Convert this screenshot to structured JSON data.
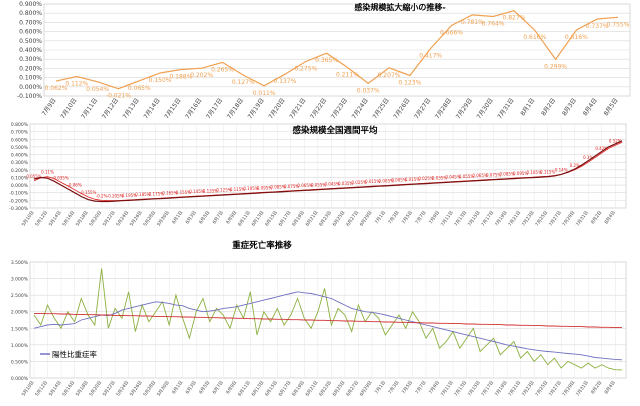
{
  "chart_data": [
    {
      "type": "line",
      "title": "感染規模拡大縮小の推移-",
      "ylim": [
        -0.1,
        0.9
      ],
      "yticks": [
        "-0.100%",
        "0.000%",
        "0.100%",
        "0.200%",
        "0.300%",
        "0.400%",
        "0.500%",
        "0.600%",
        "0.700%",
        "0.800%",
        "0.900%"
      ],
      "categories": [
        "7月9日",
        "7月10日",
        "7月11日",
        "7月12日",
        "7月13日",
        "7月14日",
        "7月15日",
        "7月16日",
        "7月17日",
        "7月18日",
        "7月19日",
        "7月20日",
        "7月21日",
        "7月22日",
        "7月23日",
        "7月24日",
        "7月25日",
        "7月26日",
        "7月27日",
        "7月28日",
        "7月29日",
        "7月30日",
        "7月31日",
        "8月1日",
        "8月2日",
        "8月3日",
        "8月4日",
        "8月5日"
      ],
      "series": [
        {
          "color": "#f0a050",
          "values": [
            0.062,
            0.112,
            0.054,
            -0.021,
            0.065,
            0.15,
            0.188,
            0.202,
            0.265,
            0.127,
            0.011,
            0.137,
            0.275,
            0.365,
            0.211,
            0.037,
            0.207,
            0.123,
            0.417,
            0.666,
            0.781,
            0.764,
            0.827,
            0.616,
            0.299,
            0.616,
            0.737,
            0.755
          ],
          "labels": [
            "0.062%",
            "0.112%",
            "0.054%",
            "-0.021%",
            "0.065%",
            "0.150%",
            "0.188%",
            "0.202%",
            "0.265%",
            "0.127%",
            "0.011%",
            "0.137%",
            "0.275%",
            "0.365%",
            "0.211%",
            "0.037%",
            "0.207%",
            "0.123%",
            "0.417%",
            "0.666%",
            "0.781%",
            "0.764%",
            "0.827%",
            "0.616%",
            "0.299%",
            "0.616%",
            "0.737%",
            "0.755%"
          ]
        }
      ],
      "grid": true
    },
    {
      "type": "line",
      "title": "感染規模全国週間平均",
      "ylim": [
        -0.3,
        0.8
      ],
      "yticks": [
        "-0.300%",
        "-0.200%",
        "-0.100%",
        "0.000%",
        "0.100%",
        "0.200%",
        "0.300%",
        "0.400%",
        "0.500%",
        "0.600%",
        "0.700%",
        "0.800%"
      ],
      "categories": [
        "5月10日",
        "5月11日",
        "5月12日",
        "5月13日",
        "5月14日",
        "5月15日",
        "5月16日",
        "5月17日",
        "5月18日",
        "5月19日",
        "5月20日",
        "5月21日",
        "5月22日",
        "5月23日",
        "5月24日",
        "5月25日",
        "5月26日",
        "5月27日",
        "5月28日",
        "5月29日",
        "5月30日",
        "5月31日",
        "6月1日",
        "6月2日",
        "6月3日",
        "6月4日",
        "6月5日",
        "6月6日",
        "6月7日",
        "6月8日",
        "6月9日",
        "6月10日",
        "6月11日",
        "6月12日",
        "6月13日",
        "6月14日",
        "6月15日",
        "6月16日",
        "6月17日",
        "6月18日",
        "6月19日",
        "6月20日",
        "6月21日",
        "6月22日",
        "6月23日",
        "6月24日",
        "6月25日",
        "6月26日",
        "6月27日",
        "6月28日",
        "6月29日",
        "6月30日",
        "7月1日",
        "7月2日",
        "7月3日",
        "7月4日",
        "7月5日",
        "7月6日",
        "7月7日",
        "7月8日",
        "7月9日",
        "7月10日",
        "7月11日",
        "7月12日",
        "7月13日",
        "7月14日",
        "7月15日",
        "7月16日",
        "7月17日",
        "7月18日",
        "7月19日",
        "7月20日",
        "7月21日",
        "7月22日",
        "7月23日",
        "7月24日",
        "7月25日",
        "7月26日",
        "7月27日",
        "7月28日",
        "7月29日",
        "7月30日",
        "7月31日",
        "8月1日",
        "8月2日",
        "8月3日",
        "8月4日",
        "8月5日"
      ],
      "xticks": [
        "5月10日",
        "5月12日",
        "5月14日",
        "5月16日",
        "5月18日",
        "5月20日",
        "5月22日",
        "5月24日",
        "5月26日",
        "5月28日",
        "5月30日",
        "6月1日",
        "6月3日",
        "6月5日",
        "6月7日",
        "6月9日",
        "6月11日",
        "6月13日",
        "6月15日",
        "6月17日",
        "6月19日",
        "6月21日",
        "6月23日",
        "6月25日",
        "6月27日",
        "6月29日",
        "7月1日",
        "7月3日",
        "7月5日",
        "7月7日",
        "7月9日",
        "7月11日",
        "7月13日",
        "7月15日",
        "7月17日",
        "7月19日",
        "7月21日",
        "7月23日",
        "7月25日",
        "7月27日",
        "7月29日",
        "7月31日",
        "8月2日",
        "8月4日"
      ],
      "series": [
        {
          "color": "#e02020",
          "values": [
            0.055,
            0.095,
            0.11,
            0.085,
            0.035,
            -0.01,
            -0.06,
            -0.11,
            -0.155,
            -0.185,
            -0.2,
            -0.205,
            -0.205,
            -0.2,
            -0.195,
            -0.19,
            -0.185,
            -0.18,
            -0.175,
            -0.17,
            -0.165,
            -0.16,
            -0.155,
            -0.15,
            -0.145,
            -0.14,
            -0.135,
            -0.13,
            -0.125,
            -0.12,
            -0.115,
            -0.11,
            -0.105,
            -0.1,
            -0.095,
            -0.09,
            -0.085,
            -0.08,
            -0.075,
            -0.07,
            -0.065,
            -0.06,
            -0.055,
            -0.05,
            -0.045,
            -0.04,
            -0.035,
            -0.03,
            -0.025,
            -0.02,
            -0.015,
            -0.01,
            -0.005,
            0.0,
            0.005,
            0.01,
            0.015,
            0.02,
            0.025,
            0.03,
            0.035,
            0.04,
            0.045,
            0.05,
            0.055,
            0.06,
            0.065,
            0.07,
            0.075,
            0.08,
            0.085,
            0.09,
            0.095,
            0.1,
            0.105,
            0.11,
            0.115,
            0.125,
            0.14,
            0.165,
            0.2,
            0.245,
            0.3,
            0.36,
            0.42,
            0.48,
            0.52,
            0.56
          ],
          "labels": [
            "0.055%",
            "0.095%",
            "0.11%",
            "0.085%",
            "0.035%",
            "-0.01%",
            "-0.06%",
            "-0.11%",
            "-0.155%",
            "-0.185%",
            "-0.2%",
            "-0.205%",
            "-0.205%",
            "-0.2%",
            "-0.195%",
            "-0.19%",
            "-0.185%",
            "-0.18%",
            "-0.175%",
            "-0.17%",
            "-0.165%",
            "-0.16%",
            "-0.155%",
            "-0.15%",
            "-0.145%",
            "-0.14%",
            "-0.135%",
            "-0.13%",
            "-0.125%",
            "-0.12%",
            "-0.115%",
            "-0.11%",
            "-0.105%",
            "-0.1%",
            "-0.095%",
            "-0.09%",
            "-0.085%",
            "-0.08%",
            "-0.075%",
            "-0.07%",
            "-0.065%",
            "-0.06%",
            "-0.055%",
            "-0.05%",
            "-0.045%",
            "-0.04%",
            "-0.035%",
            "-0.03%",
            "-0.025%",
            "-0.02%",
            "-0.015%",
            "-0.01%",
            "-0.005%",
            "0%",
            "0.005%",
            "0.01%",
            "0.015%",
            "0.02%",
            "0.025%",
            "0.03%",
            "0.035%",
            "0.04%",
            "0.045%",
            "0.05%",
            "0.055%",
            "0.06%",
            "0.065%",
            "0.07%",
            "0.075%",
            "0.08%",
            "0.085%",
            "0.09%",
            "0.095%",
            "0.1%",
            "0.105%",
            "0.11%",
            "0.115%",
            "0.125%",
            "0.14%",
            "0.165%",
            "0.2%",
            "0.245%",
            "0.3%",
            "0.36%",
            "0.42%",
            "0.48%",
            "0.52%",
            "0.56%"
          ]
        },
        {
          "color": "#7a1010",
          "values": [
            0.08,
            0.1,
            0.09,
            0.05,
            0.0,
            -0.05,
            -0.1,
            -0.15,
            -0.19,
            -0.21,
            -0.215,
            -0.215,
            -0.21,
            -0.205,
            -0.2,
            -0.195,
            -0.19,
            -0.185,
            -0.18,
            -0.175,
            -0.17,
            -0.165,
            -0.16,
            -0.155,
            -0.15,
            -0.145,
            -0.14,
            -0.135,
            -0.13,
            -0.125,
            -0.12,
            -0.115,
            -0.11,
            -0.105,
            -0.1,
            -0.095,
            -0.09,
            -0.085,
            -0.08,
            -0.075,
            -0.07,
            -0.065,
            -0.06,
            -0.055,
            -0.05,
            -0.045,
            -0.04,
            -0.035,
            -0.03,
            -0.025,
            -0.02,
            -0.015,
            -0.01,
            -0.005,
            0.0,
            0.005,
            0.01,
            0.015,
            0.02,
            0.025,
            0.03,
            0.035,
            0.04,
            0.045,
            0.05,
            0.055,
            0.06,
            0.065,
            0.07,
            0.075,
            0.08,
            0.085,
            0.09,
            0.095,
            0.1,
            0.105,
            0.11,
            0.12,
            0.14,
            0.17,
            0.21,
            0.26,
            0.32,
            0.38,
            0.44,
            0.5,
            0.54,
            0.58
          ]
        }
      ],
      "grid": true
    },
    {
      "type": "line",
      "title": "重症死亡率推移",
      "ylim": [
        0,
        3.5
      ],
      "yticks": [
        "0.000%",
        "0.500%",
        "1.000%",
        "1.500%",
        "2.000%",
        "2.500%",
        "3.000%",
        "3.500%"
      ],
      "categories": [
        "5月10日",
        "5月11日",
        "5月12日",
        "5月13日",
        "5月14日",
        "5月15日",
        "5月16日",
        "5月17日",
        "5月18日",
        "5月19日",
        "5月20日",
        "5月21日",
        "5月22日",
        "5月23日",
        "5月24日",
        "5月25日",
        "5月26日",
        "5月27日",
        "5月28日",
        "5月29日",
        "5月30日",
        "5月31日",
        "6月1日",
        "6月2日",
        "6月3日",
        "6月4日",
        "6月5日",
        "6月6日",
        "6月7日",
        "6月8日",
        "6月9日",
        "6月10日",
        "6月11日",
        "6月12日",
        "6月13日",
        "6月14日",
        "6月15日",
        "6月16日",
        "6月17日",
        "6月18日",
        "6月19日",
        "6月20日",
        "6月21日",
        "6月22日",
        "6月23日",
        "6月24日",
        "6月25日",
        "6月26日",
        "6月27日",
        "6月28日",
        "6月29日",
        "6月30日",
        "7月1日",
        "7月2日",
        "7月3日",
        "7月4日",
        "7月5日",
        "7月6日",
        "7月7日",
        "7月8日",
        "7月9日",
        "7月10日",
        "7月11日",
        "7月12日",
        "7月13日",
        "7月14日",
        "7月15日",
        "7月16日",
        "7月17日",
        "7月18日",
        "7月19日",
        "7月20日",
        "7月21日",
        "7月22日",
        "7月23日",
        "7月24日",
        "7月25日",
        "7月26日",
        "7月27日",
        "7月28日",
        "7月29日",
        "7月30日",
        "7月31日",
        "8月1日",
        "8月2日",
        "8月3日",
        "8月4日",
        "8月5日"
      ],
      "xticks": [
        "5月10日",
        "5月12日",
        "5月14日",
        "5月16日",
        "5月18日",
        "5月20日",
        "5月22日",
        "5月24日",
        "5月26日",
        "5月28日",
        "5月30日",
        "6月1日",
        "6月3日",
        "6月5日",
        "6月7日",
        "6月9日",
        "6月11日",
        "6月13日",
        "6月15日",
        "6月17日",
        "6月19日",
        "6月21日",
        "6月23日",
        "6月25日",
        "6月27日",
        "6月29日",
        "7月1日",
        "7月3日",
        "7月5日",
        "7月7日",
        "7月9日",
        "7月11日",
        "7月13日",
        "7月15日",
        "7月17日",
        "7月19日",
        "7月21日",
        "7月23日",
        "7月25日",
        "7月27日",
        "7月29日",
        "7月31日",
        "8月2日",
        "8月4日"
      ],
      "legend": {
        "label": "陽性比重症率",
        "position": "left"
      },
      "series": [
        {
          "color": "#8cb040",
          "values": [
            1.9,
            1.6,
            2.2,
            1.8,
            1.5,
            2.0,
            1.7,
            2.4,
            1.9,
            1.6,
            3.3,
            1.5,
            2.1,
            1.8,
            2.6,
            1.4,
            2.2,
            1.7,
            2.0,
            2.3,
            1.6,
            2.5,
            1.8,
            1.2,
            2.0,
            2.4,
            1.7,
            2.1,
            1.9,
            1.5,
            2.2,
            1.8,
            2.6,
            1.3,
            2.0,
            1.7,
            2.1,
            1.6,
            1.9,
            2.4,
            1.8,
            1.5,
            2.0,
            2.7,
            1.6,
            2.1,
            1.9,
            1.4,
            2.2,
            1.7,
            2.0,
            1.8,
            1.3,
            1.6,
            1.9,
            1.5,
            2.0,
            1.7,
            1.2,
            1.5,
            0.9,
            1.1,
            1.4,
            0.9,
            1.2,
            1.5,
            0.8,
            1.0,
            1.2,
            0.7,
            0.9,
            1.1,
            0.6,
            0.8,
            0.5,
            0.7,
            0.4,
            0.6,
            0.3,
            0.5,
            0.4,
            0.3,
            0.45,
            0.3,
            0.4,
            0.3,
            0.25,
            0.245
          ],
          "labels": []
        },
        {
          "color": "#7070c0",
          "values": [
            1.5,
            1.55,
            1.6,
            1.62,
            1.6,
            1.62,
            1.64,
            1.75,
            1.8,
            1.85,
            1.9,
            1.88,
            1.95,
            2.05,
            2.1,
            2.15,
            2.2,
            2.25,
            2.3,
            2.28,
            2.25,
            2.2,
            2.18,
            2.1,
            2.05,
            2.0,
            2.02,
            2.05,
            2.1,
            2.12,
            2.15,
            2.2,
            2.25,
            2.3,
            2.35,
            2.4,
            2.45,
            2.5,
            2.55,
            2.6,
            2.57,
            2.55,
            2.5,
            2.45,
            2.4,
            2.3,
            2.2,
            2.1,
            2.05,
            2.0,
            1.98,
            1.95,
            1.9,
            1.85,
            1.8,
            1.75,
            1.7,
            1.65,
            1.6,
            1.55,
            1.5,
            1.45,
            1.4,
            1.35,
            1.3,
            1.25,
            1.2,
            1.15,
            1.1,
            1.05,
            1.0,
            0.96,
            0.92,
            0.88,
            0.85,
            0.82,
            0.8,
            0.78,
            0.76,
            0.74,
            0.72,
            0.7,
            0.66,
            0.62,
            0.6,
            0.58,
            0.56,
            0.55
          ],
          "labels": []
        },
        {
          "color": "#d03030",
          "values": [
            1.95,
            1.95,
            1.94,
            1.94,
            1.93,
            1.93,
            1.92,
            1.92,
            1.91,
            1.91,
            1.9,
            1.9,
            1.89,
            1.89,
            1.88,
            1.88,
            1.87,
            1.87,
            1.86,
            1.86,
            1.85,
            1.85,
            1.84,
            1.84,
            1.83,
            1.83,
            1.82,
            1.82,
            1.81,
            1.81,
            1.8,
            1.8,
            1.79,
            1.79,
            1.78,
            1.78,
            1.77,
            1.77,
            1.76,
            1.76,
            1.75,
            1.75,
            1.74,
            1.74,
            1.73,
            1.73,
            1.72,
            1.72,
            1.71,
            1.71,
            1.7,
            1.7,
            1.69,
            1.69,
            1.68,
            1.68,
            1.67,
            1.67,
            1.66,
            1.66,
            1.65,
            1.65,
            1.64,
            1.64,
            1.63,
            1.63,
            1.62,
            1.62,
            1.61,
            1.61,
            1.6,
            1.6,
            1.59,
            1.59,
            1.58,
            1.58,
            1.57,
            1.57,
            1.56,
            1.56,
            1.55,
            1.55,
            1.54,
            1.54,
            1.53,
            1.53,
            1.52,
            1.52
          ],
          "labels": []
        }
      ],
      "grid": true
    }
  ]
}
